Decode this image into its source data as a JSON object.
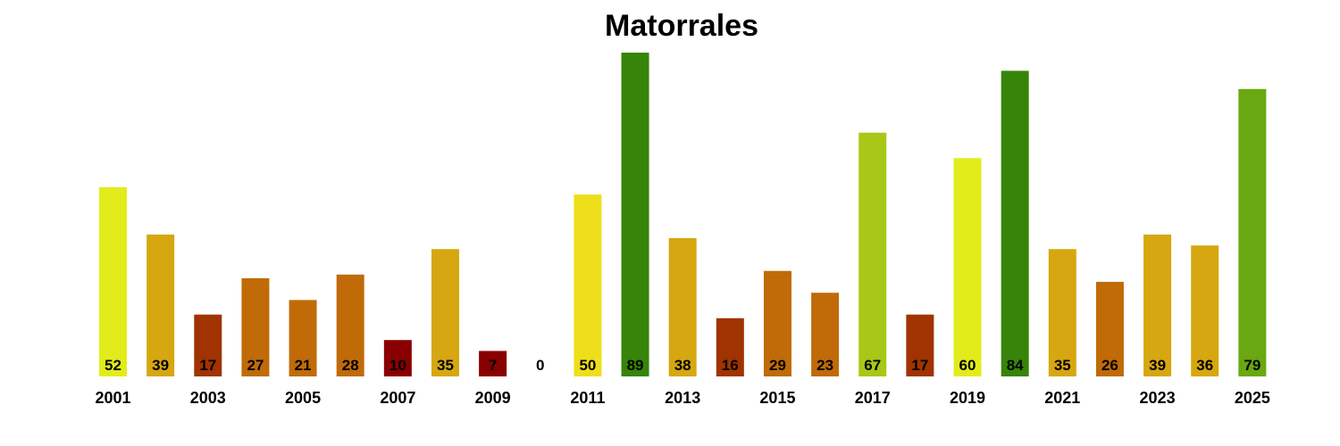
{
  "chart_data": {
    "type": "bar",
    "title": "Matorrales",
    "xlabel": "",
    "ylabel": "",
    "ylim": [
      0,
      89
    ],
    "grid": false,
    "legend": "none",
    "show_value_labels": true,
    "categories": [
      "2001",
      "2002",
      "2003",
      "2004",
      "2005",
      "2006",
      "2007",
      "2008",
      "2009",
      "2010",
      "2011",
      "2012",
      "2013",
      "2014",
      "2015",
      "2016",
      "2017",
      "2018",
      "2019",
      "2020",
      "2021",
      "2022",
      "2023",
      "2024",
      "2025"
    ],
    "values": [
      52,
      39,
      17,
      27,
      21,
      28,
      10,
      35,
      7,
      0,
      50,
      89,
      38,
      16,
      29,
      23,
      67,
      17,
      60,
      84,
      35,
      26,
      39,
      36,
      79
    ],
    "tick_labels": [
      "2001",
      "",
      "2003",
      "",
      "2005",
      "",
      "2007",
      "",
      "2009",
      "",
      "2011",
      "",
      "2013",
      "",
      "2015",
      "",
      "2017",
      "",
      "2019",
      "",
      "2021",
      "",
      "2023",
      "",
      "2025"
    ],
    "bar_colors": [
      "#e2ec1b",
      "#d6a710",
      "#a03300",
      "#c06b08",
      "#c06b08",
      "#c06b08",
      "#8a0000",
      "#d6a710",
      "#8a0000",
      "#8a0000",
      "#eedf1a",
      "#368409",
      "#d6a710",
      "#a03300",
      "#c06b08",
      "#c06b08",
      "#a8c817",
      "#a03300",
      "#e2ec1b",
      "#368409",
      "#d6a710",
      "#c06b08",
      "#d6a710",
      "#d6a710",
      "#69a810"
    ]
  }
}
